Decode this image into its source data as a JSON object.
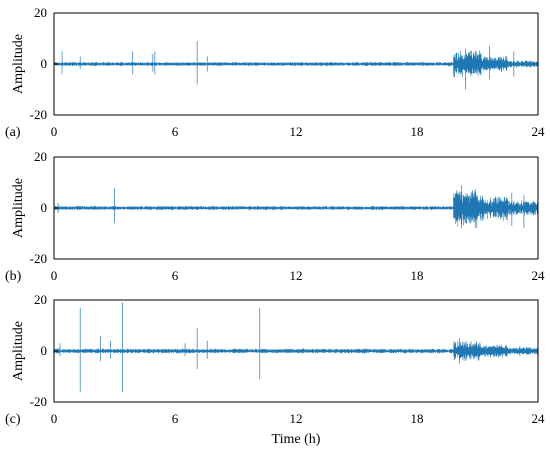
{
  "chart_data": [
    {
      "type": "line",
      "panel_label": "(a)",
      "ylabel": "Amplitude",
      "xlabel": "",
      "xlim": [
        0,
        24
      ],
      "ylim": [
        -20,
        20
      ],
      "xticks": [
        "0",
        "6",
        "12",
        "18",
        "24"
      ],
      "yticks": [
        "20",
        "0",
        "-20"
      ],
      "series_color": "#1f77b4",
      "description_of_signal": {
        "background_amplitude": 0.7,
        "bursts": [
          {
            "x_start": 19.8,
            "x_end": 21.2,
            "amplitude": 5.5
          },
          {
            "x_start": 21.2,
            "x_end": 22.5,
            "amplitude": 3
          },
          {
            "x_start": 22.5,
            "x_end": 24,
            "amplitude": 1.5
          }
        ],
        "spikes": [
          {
            "x": 0.4,
            "y_max": 5,
            "y_min": -4
          },
          {
            "x": 1.3,
            "y_max": 3,
            "y_min": -2
          },
          {
            "x": 3.9,
            "y_max": 5,
            "y_min": -4
          },
          {
            "x": 4.9,
            "y_max": 4,
            "y_min": -3
          },
          {
            "x": 5.0,
            "y_max": 5,
            "y_min": -4
          },
          {
            "x": 7.1,
            "y_max": 9,
            "y_min": -8
          },
          {
            "x": 7.6,
            "y_max": 3,
            "y_min": -3
          },
          {
            "x": 20.4,
            "y_max": 6,
            "y_min": -10
          },
          {
            "x": 21.6,
            "y_max": 7,
            "y_min": -6
          },
          {
            "x": 22.8,
            "y_max": 5,
            "y_min": -5
          }
        ]
      }
    },
    {
      "type": "line",
      "panel_label": "(b)",
      "ylabel": "Amplitude",
      "xlabel": "",
      "xlim": [
        0,
        24
      ],
      "ylim": [
        -20,
        20
      ],
      "xticks": [
        "0",
        "6",
        "12",
        "18",
        "24"
      ],
      "yticks": [
        "20",
        "0",
        "-20"
      ],
      "series_color": "#1f77b4",
      "description_of_signal": {
        "background_amplitude": 0.7,
        "bursts": [
          {
            "x_start": 19.8,
            "x_end": 21.0,
            "amplitude": 8
          },
          {
            "x_start": 21.0,
            "x_end": 22.5,
            "amplitude": 5
          },
          {
            "x_start": 22.5,
            "x_end": 24,
            "amplitude": 3
          }
        ],
        "spikes": [
          {
            "x": 0.2,
            "y_max": 2,
            "y_min": -2
          },
          {
            "x": 3.0,
            "y_max": 8,
            "y_min": -6
          },
          {
            "x": 20.2,
            "y_max": 9,
            "y_min": -8
          },
          {
            "x": 22.7,
            "y_max": 6,
            "y_min": -7
          },
          {
            "x": 23.3,
            "y_max": 5,
            "y_min": -8
          }
        ]
      }
    },
    {
      "type": "line",
      "panel_label": "(c)",
      "ylabel": "Amplitude",
      "xlabel": "Time (h)",
      "xlim": [
        0,
        24
      ],
      "ylim": [
        -20,
        20
      ],
      "xticks": [
        "0",
        "6",
        "12",
        "18",
        "24"
      ],
      "yticks": [
        "20",
        "0",
        "-20"
      ],
      "series_color": "#1f77b4",
      "description_of_signal": {
        "background_amplitude": 0.8,
        "bursts": [
          {
            "x_start": 19.8,
            "x_end": 21.2,
            "amplitude": 4
          },
          {
            "x_start": 21.2,
            "x_end": 22.5,
            "amplitude": 2.5
          },
          {
            "x_start": 22.5,
            "x_end": 24,
            "amplitude": 1.5
          }
        ],
        "spikes": [
          {
            "x": 0.3,
            "y_max": 3,
            "y_min": -2
          },
          {
            "x": 1.3,
            "y_max": 17,
            "y_min": -16
          },
          {
            "x": 2.3,
            "y_max": 6,
            "y_min": -4
          },
          {
            "x": 2.8,
            "y_max": 4,
            "y_min": -3
          },
          {
            "x": 3.4,
            "y_max": 19,
            "y_min": -16
          },
          {
            "x": 6.5,
            "y_max": 3,
            "y_min": -2
          },
          {
            "x": 7.1,
            "y_max": 9,
            "y_min": -7
          },
          {
            "x": 7.6,
            "y_max": 4,
            "y_min": -3
          },
          {
            "x": 10.2,
            "y_max": 17,
            "y_min": -11
          },
          {
            "x": 20.1,
            "y_max": 5,
            "y_min": -5
          },
          {
            "x": 23.1,
            "y_max": 2,
            "y_min": -2
          }
        ]
      }
    }
  ]
}
